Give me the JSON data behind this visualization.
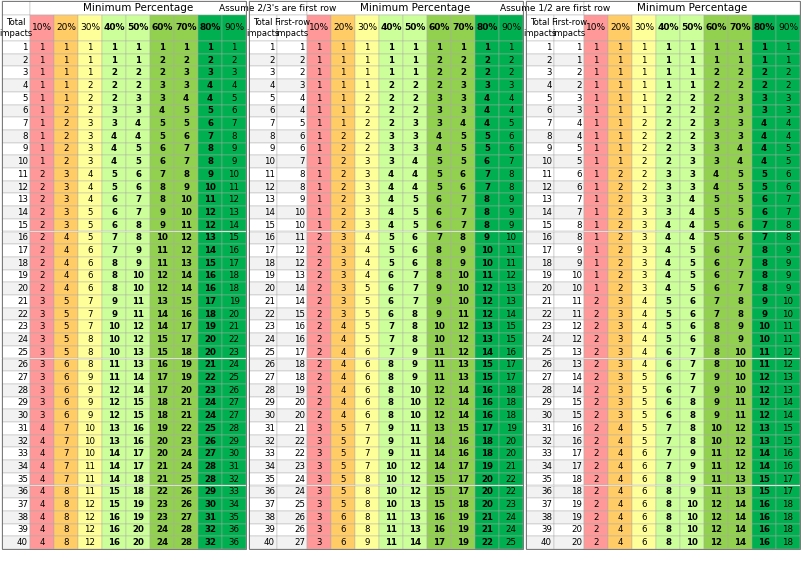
{
  "total_impacts": 40,
  "percentages": [
    10,
    20,
    30,
    40,
    50,
    60,
    70,
    80,
    90
  ],
  "bold_pct": [
    40,
    50,
    60,
    70,
    80
  ],
  "col_bg": {
    "10": "#FF9999",
    "20": "#FFCC66",
    "30": "#FFFF99",
    "40": "#CCFF99",
    "50": "#CCFF99",
    "60": "#92D050",
    "70": "#92D050",
    "80": "#00B050",
    "90": "#00B050"
  },
  "col_text": {
    "10": "black",
    "20": "black",
    "30": "black",
    "40": "black",
    "50": "black",
    "60": "black",
    "70": "black",
    "80": "black",
    "90": "black"
  },
  "row_even_bg": "#FFFFFF",
  "row_odd_bg": "#F2F2F2",
  "header_bg": "#FFFFFF",
  "border_color": "#AAAAAA",
  "s1_title": "Minimum Percentage",
  "s2_section_title": "Assume 2/3's are first row",
  "s2_min_title": "Minimum Percentage",
  "s3_section_title": "Assume 1/2 are first row",
  "s3_min_title": "Minimum Percentage",
  "col_total_header": "Total\nimpacts",
  "col_firstrow_header": "First-row\nimpacts"
}
